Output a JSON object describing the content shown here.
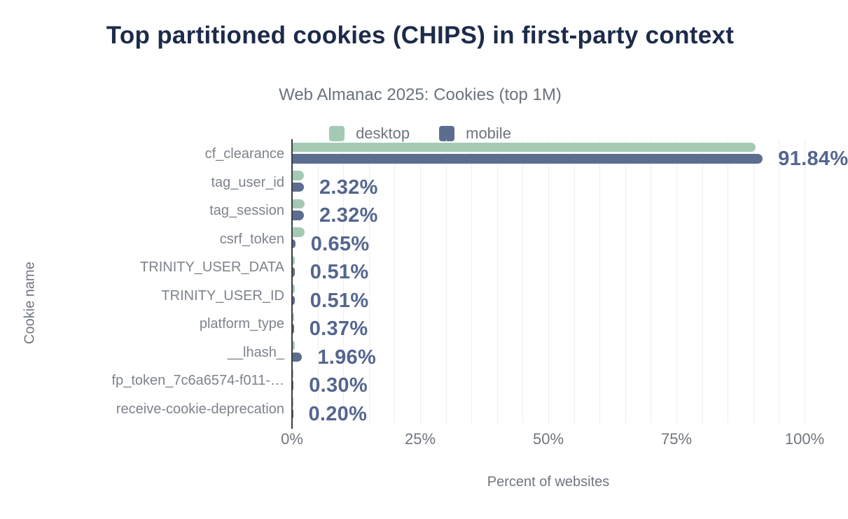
{
  "header": {
    "title": "Top partitioned cookies (CHIPS) in first-party context",
    "subtitle": "Web Almanac 2025: Cookies (top 1M)"
  },
  "colors": {
    "desktop": "#a5cab4",
    "mobile": "#5b6e90",
    "title": "#1d2b4a",
    "value_label": "#54668e",
    "gridline": "#ededed",
    "axis_line": "#3b3c3e"
  },
  "chart_data": {
    "type": "bar",
    "orientation": "horizontal",
    "title": "Top partitioned cookies (CHIPS) in first-party context",
    "subtitle": "Web Almanac 2025: Cookies (top 1M)",
    "xlabel": "Percent of websites",
    "ylabel": "Cookie name",
    "xlim": [
      0,
      100
    ],
    "x_tick_labels": [
      "0%",
      "25%",
      "50%",
      "75%",
      "100%"
    ],
    "x_tick_values": [
      0,
      25,
      50,
      75,
      100
    ],
    "grid_interval": 5,
    "grid": true,
    "legend_position": "top",
    "categories": [
      "cf_clearance",
      "tag_user_id",
      "tag_session",
      "csrf_token",
      "TRINITY_USER_DATA",
      "TRINITY_USER_ID",
      "platform_type",
      "__lhash_",
      "fp_token_7c6a6574-f011-…",
      "receive-cookie-deprecation"
    ],
    "series": [
      {
        "name": "desktop",
        "color": "#a5cab4",
        "values": [
          90.4,
          2.3,
          2.4,
          2.5,
          0.55,
          0.55,
          0.4,
          0.5,
          0.3,
          0.2
        ]
      },
      {
        "name": "mobile",
        "color": "#5b6e90",
        "values": [
          91.84,
          2.32,
          2.32,
          0.65,
          0.51,
          0.51,
          0.37,
          1.96,
          0.3,
          0.2
        ]
      }
    ],
    "value_labels": [
      "91.84%",
      "2.32%",
      "2.32%",
      "0.65%",
      "0.51%",
      "0.51%",
      "0.37%",
      "1.96%",
      "0.30%",
      "0.20%"
    ],
    "value_label_series": "mobile"
  }
}
